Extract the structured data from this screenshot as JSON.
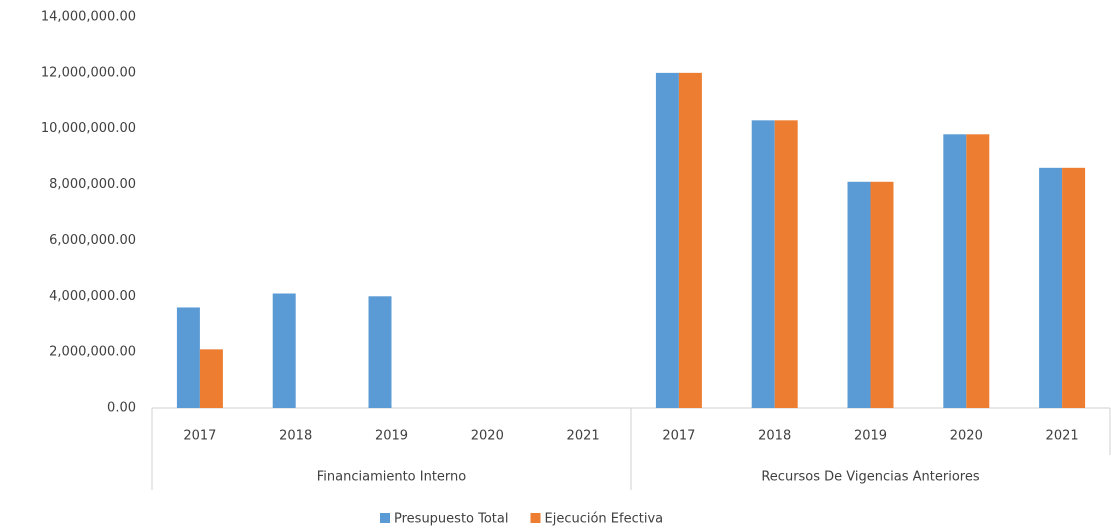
{
  "chart_data": {
    "type": "bar",
    "groups": [
      {
        "name": "Financiamiento Interno",
        "categories": [
          "2017",
          "2018",
          "2019",
          "2020",
          "2021"
        ]
      },
      {
        "name": "Recursos De Vigencias Anteriores",
        "categories": [
          "2017",
          "2018",
          "2019",
          "2020",
          "2021"
        ]
      }
    ],
    "series": [
      {
        "name": "Presupuesto Total",
        "color": "#5b9bd5",
        "values": [
          3600000,
          4100000,
          4000000,
          0,
          0,
          12000000,
          10300000,
          8100000,
          9800000,
          8600000
        ]
      },
      {
        "name": "Ejecución Efectiva",
        "color": "#ed7d31",
        "values": [
          2100000,
          0,
          0,
          0,
          0,
          12000000,
          10300000,
          8100000,
          9800000,
          8600000
        ]
      }
    ],
    "ylim": [
      0,
      14000000
    ],
    "yticks": [
      {
        "value": 0,
        "label": "0.00"
      },
      {
        "value": 2000000,
        "label": "2,000,000.00"
      },
      {
        "value": 4000000,
        "label": "4,000,000.00"
      },
      {
        "value": 6000000,
        "label": "6,000,000.00"
      },
      {
        "value": 8000000,
        "label": "8,000,000.00"
      },
      {
        "value": 10000000,
        "label": "10,000,000.00"
      },
      {
        "value": 12000000,
        "label": "12,000,000.00"
      },
      {
        "value": 14000000,
        "label": "14,000,000.00"
      }
    ],
    "grid": false,
    "legend": "bottom"
  }
}
